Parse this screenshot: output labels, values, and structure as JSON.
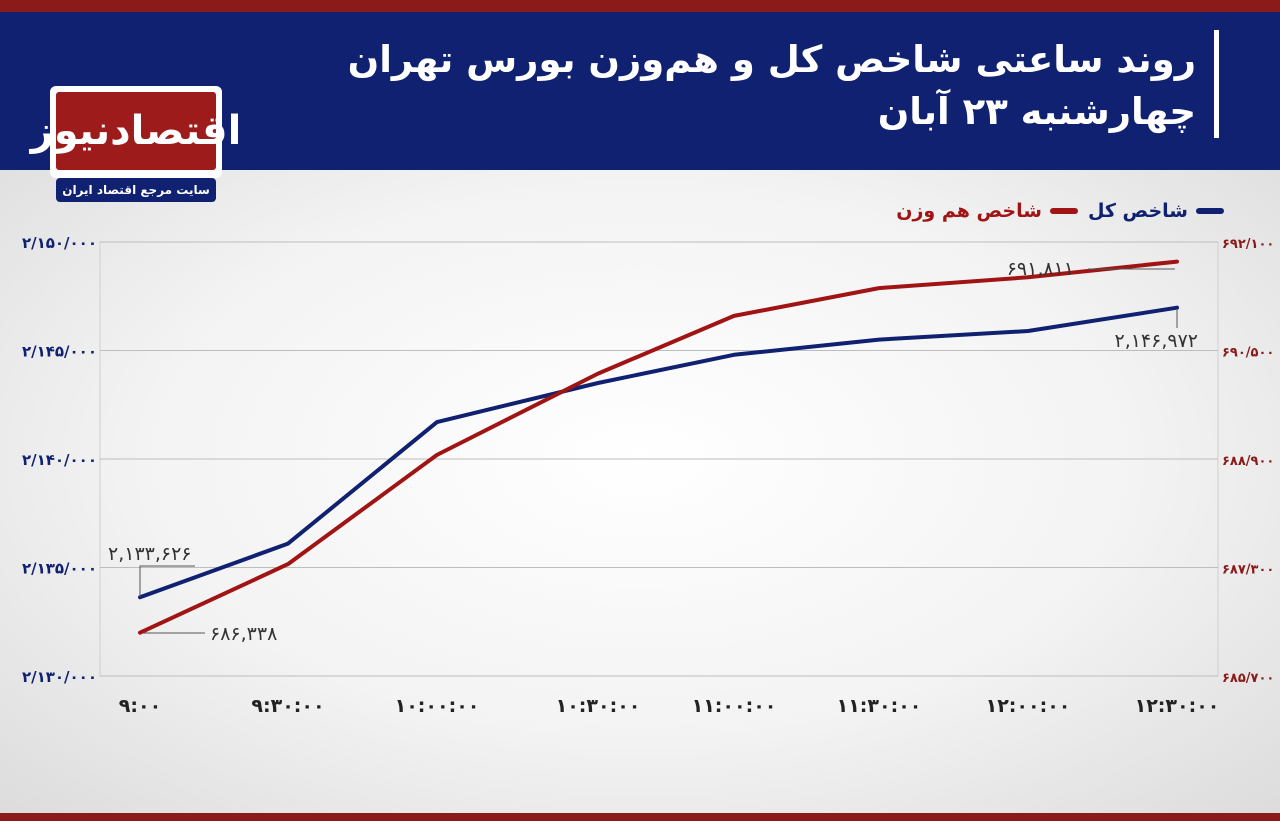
{
  "header": {
    "title_line1": "روند ساعتی شاخص کل و هم‌وزن بورس تهران",
    "title_line2": "چهارشنبه ۲۳ آبان"
  },
  "logo": {
    "name": "اقتصادنیوز",
    "tagline": "سایت مرجع اقتصاد ایران"
  },
  "colors": {
    "header_bg": "#0f2170",
    "accent_red": "#8b1a1a",
    "series_total": "#0f2170",
    "series_equal": "#a01414"
  },
  "chart_data": {
    "type": "line",
    "x": [
      "9:00",
      "9:30:00",
      "10:00:00",
      "10:30:00",
      "11:00:00",
      "11:30:00",
      "12:00:00",
      "12:30:00"
    ],
    "x_tick_labels": [
      "۹:۰۰",
      "۹:۳۰:۰۰",
      "۱۰:۰۰:۰۰",
      "۱۰:۳۰:۰۰",
      "۱۱:۰۰:۰۰",
      "۱۱:۳۰:۰۰",
      "۱۲:۰۰:۰۰",
      "۱۲:۳۰:۰۰"
    ],
    "series": [
      {
        "name": "شاخص کل",
        "axis": "left",
        "color": "#0f2170",
        "values": [
          2133626,
          2136100,
          2141700,
          2143500,
          2144800,
          2145500,
          2145900,
          2146972
        ]
      },
      {
        "name": "شاخص هم وزن",
        "axis": "right",
        "color": "#a01414",
        "values": [
          686338,
          687350,
          688960,
          690160,
          691010,
          691420,
          691580,
          691811
        ]
      }
    ],
    "y_left": {
      "ylim": [
        2130000,
        2150000
      ],
      "ticks": [
        2130000,
        2135000,
        2140000,
        2145000,
        2150000
      ],
      "tick_labels": [
        "۲/۱۳۰/۰۰۰",
        "۲/۱۳۵/۰۰۰",
        "۲/۱۴۰/۰۰۰",
        "۲/۱۴۵/۰۰۰",
        "۲/۱۵۰/۰۰۰"
      ]
    },
    "y_right": {
      "ylim": [
        685700,
        692100
      ],
      "ticks": [
        685700,
        687300,
        688900,
        690500,
        692100
      ],
      "tick_labels": [
        "۶۸۵/۷۰۰",
        "۶۸۷/۳۰۰",
        "۶۸۸/۹۰۰",
        "۶۹۰/۵۰۰",
        "۶۹۲/۱۰۰"
      ]
    },
    "annotations": [
      {
        "series": 0,
        "point": 0,
        "text": "۲,۱۳۳,۶۲۶"
      },
      {
        "series": 1,
        "point": 0,
        "text": "۶۸۶,۳۳۸"
      },
      {
        "series": 1,
        "point": 7,
        "text": "۶۹۱,۸۱۱"
      },
      {
        "series": 0,
        "point": 7,
        "text": "۲,۱۴۶,۹۷۲"
      }
    ],
    "grid": true,
    "legend_position": "top-right"
  }
}
